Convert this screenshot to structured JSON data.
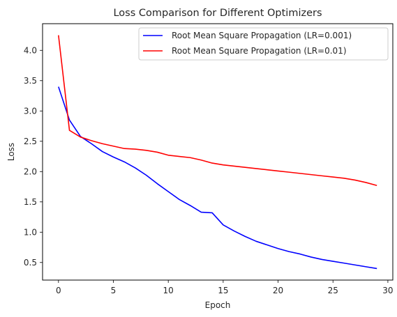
{
  "chart_data": {
    "type": "line",
    "title": "Loss Comparison for Different Optimizers",
    "xlabel": "Epoch",
    "ylabel": "Loss",
    "xlim": [
      -1.45,
      30.45
    ],
    "ylim": [
      0.21,
      4.44
    ],
    "xticks": [
      0,
      5,
      10,
      15,
      20,
      25,
      30
    ],
    "yticks": [
      0.5,
      1.0,
      1.5,
      2.0,
      2.5,
      3.0,
      3.5,
      4.0
    ],
    "ytick_labels": [
      "0.5",
      "1.0",
      "1.5",
      "2.0",
      "2.5",
      "3.0",
      "3.5",
      "4.0"
    ],
    "grid": false,
    "legend_position": "top-right",
    "x": [
      0,
      1,
      2,
      3,
      4,
      5,
      6,
      7,
      8,
      9,
      10,
      11,
      12,
      13,
      14,
      15,
      16,
      17,
      18,
      19,
      20,
      21,
      22,
      23,
      24,
      25,
      26,
      27,
      28,
      29
    ],
    "series": [
      {
        "name": "Root Mean Square Propagation (LR=0.001)",
        "color": "#0000ff",
        "values": [
          3.4,
          2.85,
          2.58,
          2.46,
          2.33,
          2.24,
          2.16,
          2.06,
          1.94,
          1.8,
          1.67,
          1.54,
          1.44,
          1.33,
          1.32,
          1.12,
          1.02,
          0.93,
          0.85,
          0.79,
          0.73,
          0.68,
          0.64,
          0.59,
          0.55,
          0.52,
          0.49,
          0.46,
          0.43,
          0.4
        ]
      },
      {
        "name": "Root Mean Square Propagation (LR=0.01)",
        "color": "#ff0000",
        "values": [
          4.25,
          2.68,
          2.57,
          2.51,
          2.46,
          2.42,
          2.38,
          2.37,
          2.35,
          2.32,
          2.27,
          2.25,
          2.23,
          2.19,
          2.14,
          2.11,
          2.09,
          2.07,
          2.05,
          2.03,
          2.01,
          1.99,
          1.97,
          1.95,
          1.93,
          1.91,
          1.89,
          1.86,
          1.82,
          1.77
        ]
      }
    ]
  }
}
